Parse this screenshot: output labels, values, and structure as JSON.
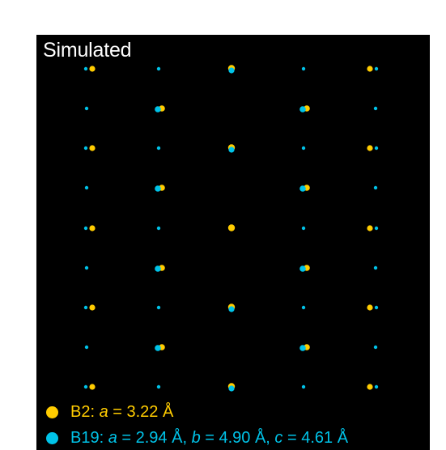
{
  "panel_label": "Simulated",
  "colors": {
    "background": "#000000",
    "label": "#ffffff",
    "b2": "#FFCC00",
    "b19": "#00C3E8"
  },
  "legend": [
    {
      "key": "b2",
      "parts": [
        {
          "t": "B2: "
        },
        {
          "t": "a",
          "i": true
        },
        {
          "t": " = 3.22 Å"
        }
      ]
    },
    {
      "key": "b19",
      "parts": [
        {
          "t": "B19: "
        },
        {
          "t": "a",
          "i": true
        },
        {
          "t": " = 2.94 Å, "
        },
        {
          "t": "b",
          "i": true
        },
        {
          "t": " = 4.90 Å, "
        },
        {
          "t": "c",
          "i": true
        },
        {
          "t": " = 4.61 Å"
        }
      ]
    }
  ],
  "diffraction_pattern": {
    "columns": 5,
    "rows": 9,
    "b2_spot_rows": [
      0,
      2,
      4,
      6,
      8
    ],
    "b2_spot_columns": [
      0,
      2,
      4
    ]
  }
}
